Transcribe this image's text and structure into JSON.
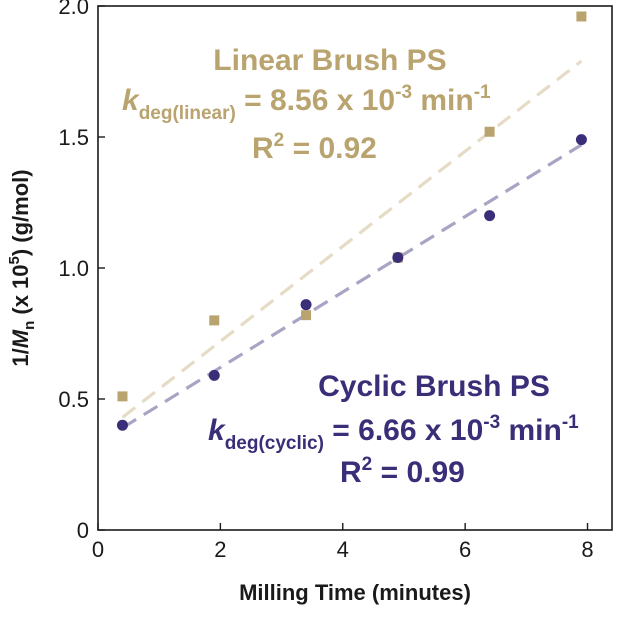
{
  "chart_data": {
    "type": "scatter",
    "xlabel": "Milling Time (minutes)",
    "ylabel": {
      "prefix": "1/",
      "italic": "M",
      "sub": "n",
      "middle": " (x 10",
      "sup": "5",
      "suffix": ") (g/mol)"
    },
    "xlim": [
      0,
      8.4
    ],
    "ylim": [
      0,
      2.0
    ],
    "xticks": [
      0,
      2,
      4,
      6,
      8
    ],
    "yticks": [
      0,
      0.5,
      1.0,
      1.5,
      2.0
    ],
    "ytick_labels": [
      "0",
      "0.5",
      "1.0",
      "1.5",
      "2.0"
    ],
    "xtick_labels": [
      "0",
      "2",
      "4",
      "6",
      "8"
    ],
    "grid": false,
    "series": [
      {
        "name": "Linear Brush PS",
        "marker": "square",
        "color": "#b9a36f",
        "fit_color": "#e6dcc6",
        "x": [
          0.4,
          1.9,
          3.4,
          4.9,
          6.4,
          7.9
        ],
        "y": [
          0.51,
          0.8,
          0.82,
          1.04,
          1.52,
          1.96
        ],
        "fit": {
          "x": [
            0.4,
            7.9
          ],
          "y": [
            0.43,
            1.79
          ]
        }
      },
      {
        "name": "Cyclic Brush PS",
        "marker": "circle",
        "color": "#3b2e78",
        "fit_color": "#a9a3c4",
        "x": [
          0.4,
          1.9,
          3.4,
          4.9,
          6.4,
          7.9
        ],
        "y": [
          0.4,
          0.59,
          0.86,
          1.04,
          1.2,
          1.49
        ],
        "fit": {
          "x": [
            0.4,
            7.9
          ],
          "y": [
            0.39,
            1.47
          ]
        }
      }
    ],
    "annotations": {
      "linear": {
        "title": "Linear Brush PS",
        "k_symbol": "k",
        "k_sub": "deg(linear)",
        "k_value": " = 8.56 x 10",
        "k_exp": "-3",
        "k_unit": " min",
        "k_unit_exp": "-1",
        "r2_prefix": "R",
        "r2_sup": "2",
        "r2_value": " = 0.92"
      },
      "cyclic": {
        "title": "Cyclic Brush PS",
        "k_symbol": "k",
        "k_sub": "deg(cyclic)",
        "k_value": " = 6.66 x 10",
        "k_exp": "-3",
        "k_unit": " min",
        "k_unit_exp": "-1",
        "r2_prefix": "R",
        "r2_sup": "2",
        "r2_value": " = 0.99"
      }
    }
  }
}
